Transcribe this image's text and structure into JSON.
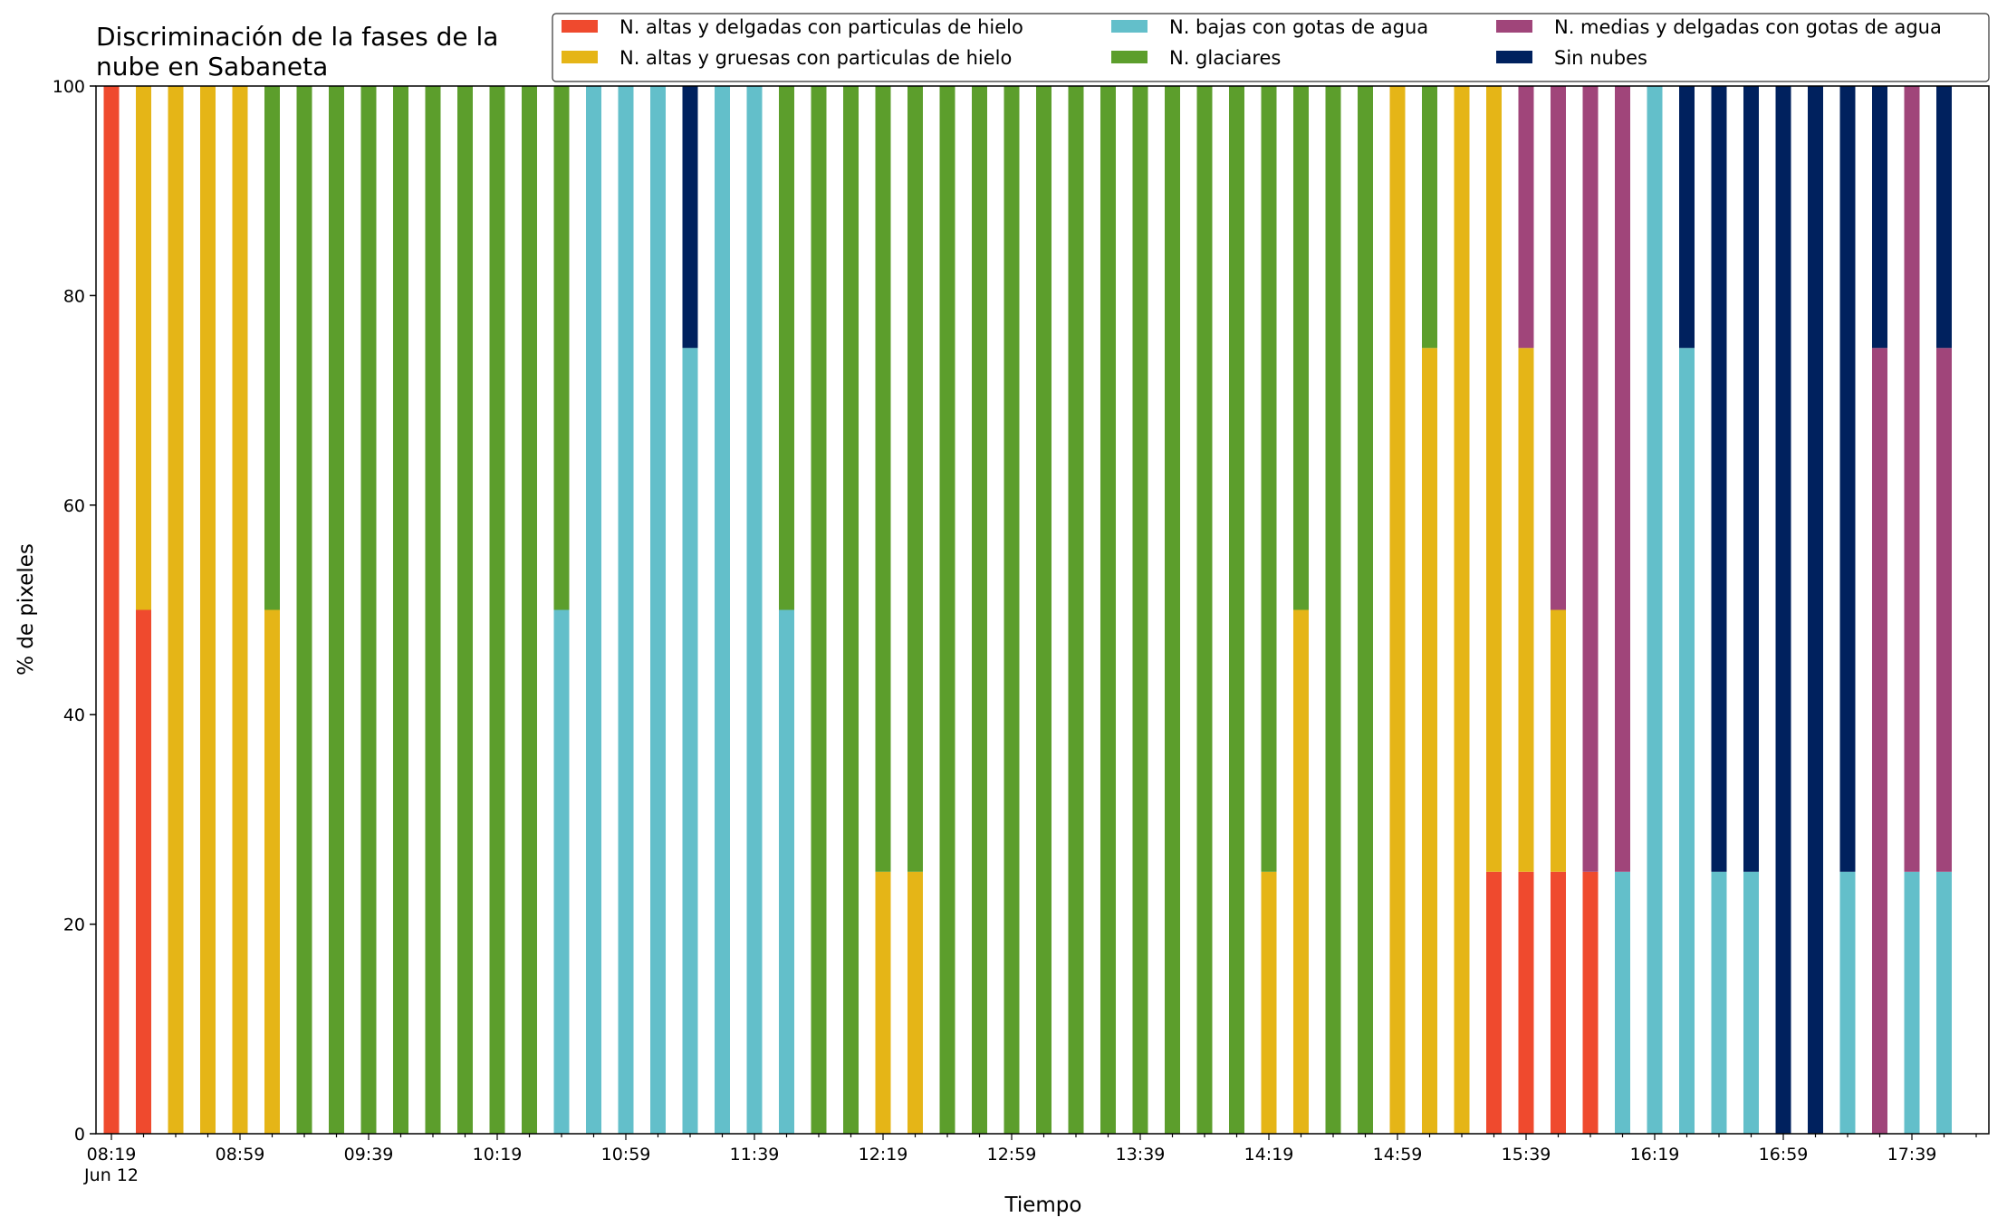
{
  "chart_data": {
    "type": "bar",
    "stacked": true,
    "title": "Discriminación de la fases de la nube en Sabaneta",
    "title_lines": [
      "Discriminación de la fases de la",
      "nube en Sabaneta"
    ],
    "xlabel": "Tiempo",
    "ylabel": "% de pixeles",
    "ylim": [
      0,
      100
    ],
    "y_ticks": [
      "0",
      "20",
      "40",
      "60",
      "80",
      "100"
    ],
    "grid": false,
    "legend_position": "top-right",
    "x_tick_labels": [
      "08:19",
      "08:59",
      "09:39",
      "10:19",
      "10:59",
      "11:39",
      "12:19",
      "12:59",
      "13:39",
      "14:19",
      "14:59",
      "15:39",
      "16:19",
      "16:59",
      "17:39"
    ],
    "x_date_label": "Jun 12",
    "categories": [
      "08:19",
      "08:29",
      "08:39",
      "08:49",
      "08:59",
      "09:09",
      "09:19",
      "09:29",
      "09:39",
      "09:49",
      "09:59",
      "10:09",
      "10:19",
      "10:29",
      "10:39",
      "10:49",
      "10:59",
      "11:09",
      "11:19",
      "11:29",
      "11:39",
      "11:49",
      "11:59",
      "12:09",
      "12:19",
      "12:29",
      "12:39",
      "12:49",
      "12:59",
      "13:09",
      "13:19",
      "13:29",
      "13:39",
      "13:49",
      "13:59",
      "14:09",
      "14:19",
      "14:29",
      "14:39",
      "14:49",
      "14:59",
      "15:09",
      "15:19",
      "15:29",
      "15:39",
      "15:49",
      "15:59",
      "16:09",
      "16:19",
      "16:29",
      "16:39",
      "16:49",
      "16:59",
      "17:09",
      "17:19",
      "17:29",
      "17:39",
      "17:49"
    ],
    "series": [
      {
        "name": "N. altas y delgadas con particulas de hielo",
        "color": "#ef4a2e",
        "values": [
          100,
          50,
          0,
          0,
          0,
          0,
          0,
          0,
          0,
          0,
          0,
          0,
          0,
          0,
          0,
          0,
          0,
          0,
          0,
          0,
          0,
          0,
          0,
          0,
          0,
          0,
          0,
          0,
          0,
          0,
          0,
          0,
          0,
          0,
          0,
          0,
          0,
          0,
          0,
          0,
          0,
          0,
          0,
          25,
          25,
          25,
          25,
          0,
          0,
          0,
          0,
          0,
          0,
          0,
          0,
          0,
          0,
          0
        ]
      },
      {
        "name": "N. altas y gruesas con particulas de hielo",
        "color": "#e5b517",
        "values": [
          0,
          50,
          100,
          100,
          100,
          50,
          0,
          0,
          0,
          0,
          0,
          0,
          0,
          0,
          0,
          0,
          0,
          0,
          0,
          0,
          0,
          0,
          0,
          0,
          25,
          25,
          0,
          0,
          0,
          0,
          0,
          0,
          0,
          0,
          0,
          0,
          25,
          50,
          0,
          0,
          100,
          75,
          100,
          75,
          50,
          25,
          0,
          0,
          0,
          0,
          0,
          0,
          0,
          0,
          0,
          0,
          0,
          0
        ]
      },
      {
        "name": "N. bajas con gotas de agua",
        "color": "#63bfca",
        "values": [
          0,
          0,
          0,
          0,
          0,
          0,
          0,
          0,
          0,
          0,
          0,
          0,
          0,
          0,
          50,
          100,
          100,
          100,
          75,
          100,
          100,
          50,
          0,
          0,
          0,
          0,
          0,
          0,
          0,
          0,
          0,
          0,
          0,
          0,
          0,
          0,
          0,
          0,
          0,
          0,
          0,
          0,
          0,
          0,
          0,
          0,
          0,
          25,
          100,
          75,
          25,
          25,
          0,
          0,
          25,
          0,
          25,
          25
        ]
      },
      {
        "name": "N. glaciares",
        "color": "#5c9e2c",
        "values": [
          0,
          0,
          0,
          0,
          0,
          50,
          100,
          100,
          100,
          100,
          100,
          100,
          100,
          100,
          50,
          0,
          0,
          0,
          0,
          0,
          0,
          50,
          100,
          100,
          75,
          75,
          100,
          100,
          100,
          100,
          100,
          100,
          100,
          100,
          100,
          100,
          75,
          50,
          100,
          100,
          0,
          25,
          0,
          0,
          0,
          0,
          0,
          0,
          0,
          0,
          0,
          0,
          0,
          0,
          0,
          0,
          0,
          0
        ]
      },
      {
        "name": "N. medias y delgadas con gotas de agua",
        "color": "#a0457a",
        "values": [
          0,
          0,
          0,
          0,
          0,
          0,
          0,
          0,
          0,
          0,
          0,
          0,
          0,
          0,
          0,
          0,
          0,
          0,
          0,
          0,
          0,
          0,
          0,
          0,
          0,
          0,
          0,
          0,
          0,
          0,
          0,
          0,
          0,
          0,
          0,
          0,
          0,
          0,
          0,
          0,
          0,
          0,
          0,
          0,
          25,
          50,
          75,
          75,
          0,
          0,
          0,
          0,
          0,
          0,
          0,
          75,
          75,
          50
        ]
      },
      {
        "name": "Sin nubes",
        "color": "#00215e",
        "values": [
          0,
          0,
          0,
          0,
          0,
          0,
          0,
          0,
          0,
          0,
          0,
          0,
          0,
          0,
          0,
          0,
          0,
          0,
          25,
          0,
          0,
          0,
          0,
          0,
          0,
          0,
          0,
          0,
          0,
          0,
          0,
          0,
          0,
          0,
          0,
          0,
          0,
          0,
          0,
          0,
          0,
          0,
          0,
          0,
          0,
          0,
          0,
          0,
          0,
          25,
          75,
          75,
          100,
          100,
          75,
          25,
          0,
          25
        ]
      }
    ]
  }
}
